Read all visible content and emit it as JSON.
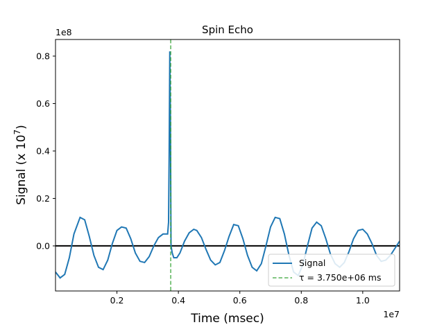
{
  "chart_data": {
    "type": "line",
    "title": "Spin Echo",
    "xlabel": "Time (msec)",
    "ylabel_main": "Signal (x 10",
    "ylabel_exp": "7",
    "ylabel_close": ")",
    "x_offset_label": "1e7",
    "y_offset_label": "1e8",
    "xlim": [
      0.0,
      11200000.0
    ],
    "ylim": [
      -19000000.0,
      87000000.0
    ],
    "x_ticks": [
      {
        "value": 2000000,
        "label": "0.2"
      },
      {
        "value": 4000000,
        "label": "0.4"
      },
      {
        "value": 6000000,
        "label": "0.6"
      },
      {
        "value": 8000000,
        "label": "0.8"
      },
      {
        "value": 10000000,
        "label": "1.0"
      }
    ],
    "y_ticks": [
      {
        "value": 0,
        "label": "0.0"
      },
      {
        "value": 20000000,
        "label": "0.2"
      },
      {
        "value": 40000000,
        "label": "0.4"
      },
      {
        "value": 60000000,
        "label": "0.6"
      },
      {
        "value": 80000000,
        "label": "0.8"
      }
    ],
    "series": [
      {
        "name": "Signal",
        "color": "#1f77b4",
        "x": [
          0,
          150000,
          300000,
          450000,
          600000,
          800000,
          950000,
          1100000,
          1250000,
          1400000,
          1550000,
          1700000,
          1850000,
          2000000,
          2150000,
          2300000,
          2450000,
          2600000,
          2750000,
          2900000,
          3050000,
          3200000,
          3350000,
          3500000,
          3600000,
          3650000,
          3680000,
          3700000,
          3720000,
          3740000,
          3760000,
          3800000,
          3850000,
          3950000,
          4050000,
          4200000,
          4350000,
          4500000,
          4600000,
          4750000,
          4900000,
          5050000,
          5200000,
          5350000,
          5500000,
          5650000,
          5800000,
          5950000,
          6100000,
          6250000,
          6400000,
          6550000,
          6700000,
          6850000,
          7000000,
          7150000,
          7300000,
          7450000,
          7600000,
          7750000,
          7900000,
          8050000,
          8200000,
          8350000,
          8500000,
          8650000,
          8800000,
          8950000,
          9100000,
          9250000,
          9400000,
          9550000,
          9700000,
          9850000,
          10000000,
          10150000,
          10300000,
          10450000,
          10600000,
          10750000,
          10900000,
          11050000,
          11200000
        ],
        "y": [
          -11000000,
          -13500000,
          -12000000,
          -5000000,
          5000000,
          12000000,
          11000000,
          4000000,
          -4000000,
          -9000000,
          -10000000,
          -6000000,
          1000000,
          6500000,
          8000000,
          7500000,
          3000000,
          -3000000,
          -6500000,
          -7000000,
          -4500000,
          0,
          3500000,
          5000000,
          5000000,
          5000000,
          10000000,
          40000000,
          82000000,
          55000000,
          0,
          -3000000,
          -5000000,
          -5000000,
          -3000000,
          2000000,
          5500000,
          7000000,
          6500000,
          3500000,
          -1500000,
          -6000000,
          -8000000,
          -7000000,
          -2000000,
          4000000,
          9000000,
          8500000,
          3000000,
          -4000000,
          -9000000,
          -10500000,
          -7500000,
          0,
          8000000,
          12000000,
          11500000,
          5000000,
          -4000000,
          -11000000,
          -12500000,
          -8000000,
          0,
          7500000,
          10000000,
          8500000,
          3000000,
          -3500000,
          -7500000,
          -9000000,
          -7000000,
          -2500000,
          3000000,
          6500000,
          7000000,
          5000000,
          1000000,
          -4000000,
          -6500000,
          -6000000,
          -4000000,
          -1000000,
          2000000
        ]
      }
    ],
    "tau_line": {
      "value": 3750000.0,
      "color": "#2ca02c",
      "legend_label": "τ = 3.750e+06 ms"
    },
    "zero_line_color": "#000000",
    "legend_position": "lower-right",
    "grid": false
  }
}
